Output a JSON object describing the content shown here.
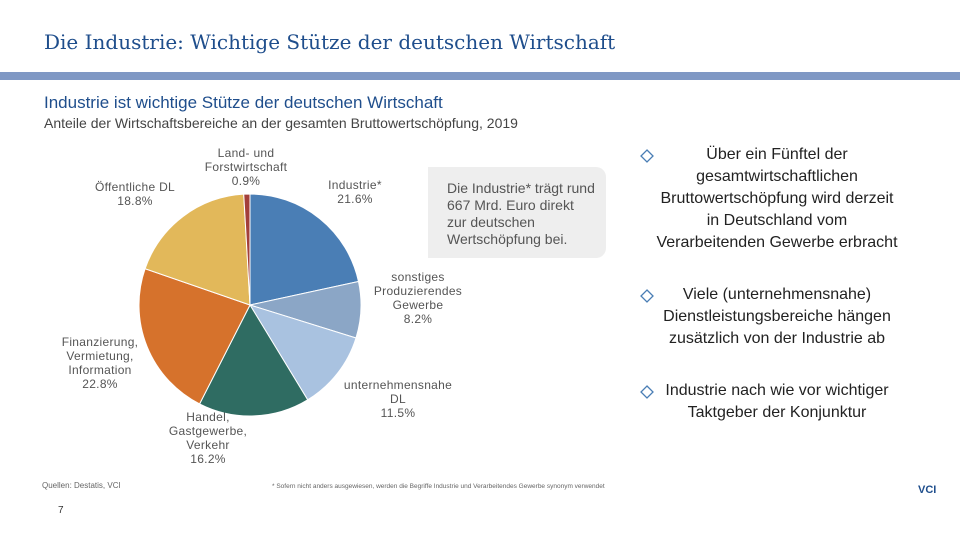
{
  "header": {
    "title": "Die Industrie: Wichtige Stütze der deutschen Wirtschaft"
  },
  "chart_data": {
    "type": "pie",
    "title": "Industrie ist wichtige Stütze der deutschen Wirtschaft",
    "subtitle": "Anteile der Wirtschaftsbereiche an der gesamten Bruttowertschöpfung, 2019",
    "categories": [
      "Industrie*",
      "sonstiges Produzierendes Gewerbe",
      "unternehmensnahe DL",
      "Handel, Gastgewerbe, Verkehr",
      "Finanzierung, Vermietung, Information",
      "Öffentliche DL",
      "Land- und Forstwirtschaft"
    ],
    "values": [
      21.6,
      8.2,
      11.5,
      16.2,
      22.8,
      18.8,
      0.9
    ],
    "value_labels": [
      "21.6%",
      "8.2%",
      "11.5%",
      "16.2%",
      "22.8%",
      "18.8%",
      "0.9%"
    ],
    "colors": [
      "#4a7eb5",
      "#8ba6c6",
      "#a9c2e0",
      "#2f6c62",
      "#d6722c",
      "#e2b85a",
      "#a33f3a"
    ],
    "annotation": "Die Industrie* trägt rund 667 Mrd. Euro direkt zur deutschen Wertschöpfung bei."
  },
  "bullets": [
    "Über ein Fünftel der gesamtwirtschaftlichen Bruttowertschöpfung wird derzeit in Deutschland vom Verarbeitenden Gewerbe erbracht",
    "Viele (unternehmensnahe) Dienstleistungsbereiche hängen zusätzlich von der Industrie ab",
    "Industrie nach wie vor wichtiger Taktgeber der Konjunktur"
  ],
  "footer": {
    "source": "Quellen: Destatis, VCI",
    "footnote": "* Sofern nicht anders ausgewiesen, werden die Begriffe Industrie und Verarbeitendes Gewerbe synonym verwendet",
    "page": "7",
    "logo": "VCI"
  }
}
